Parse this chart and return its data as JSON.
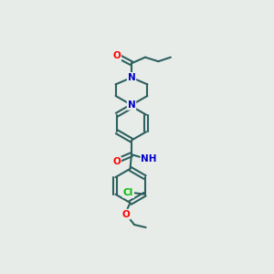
{
  "bg_color": "#e8ece8",
  "atom_colors": {
    "O": "#ff0000",
    "N": "#0000cc",
    "Cl": "#00bb00",
    "C": "#1a1a1a",
    "H": "#555555"
  },
  "bond_color": "#2d6060",
  "bond_width": 1.5,
  "figsize": [
    3.0,
    3.0
  ],
  "dpi": 100
}
